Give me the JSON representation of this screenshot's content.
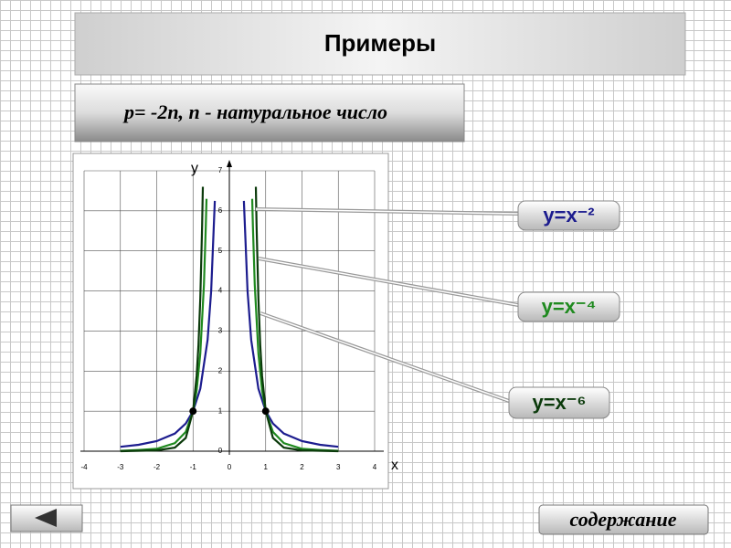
{
  "header": {
    "title": "Примеры"
  },
  "formula": "p= -2n, n - натуральное число",
  "chart_data": {
    "type": "line",
    "x_label": "x",
    "y_label": "y",
    "xlim": [
      -4,
      4
    ],
    "ylim": [
      0,
      7
    ],
    "xticks": [
      -4,
      -3,
      -2,
      -1,
      0,
      1,
      2,
      3,
      4
    ],
    "yticks": [
      0,
      1,
      2,
      3,
      4,
      5,
      6,
      7
    ],
    "grid": true,
    "series": [
      {
        "name": "y=x⁻²",
        "color": "#1c1c8e",
        "x": [
          -3,
          -2.5,
          -2,
          -1.5,
          -1.2,
          -1,
          -0.8,
          -0.6,
          -0.5,
          -0.4,
          0,
          0.4,
          0.5,
          0.6,
          0.8,
          1,
          1.2,
          1.5,
          2,
          2.5,
          3
        ],
        "values": [
          0.11,
          0.16,
          0.25,
          0.44,
          0.69,
          1,
          1.56,
          2.78,
          4,
          6.25,
          null,
          6.25,
          4,
          2.78,
          1.56,
          1,
          0.69,
          0.44,
          0.25,
          0.16,
          0.11
        ]
      },
      {
        "name": "y=x⁻⁴",
        "color": "#1f8a1f",
        "x": [
          -3,
          -2.5,
          -2,
          -1.5,
          -1.2,
          -1,
          -0.9,
          -0.8,
          -0.7,
          -0.65,
          -0.63,
          0,
          0.63,
          0.65,
          0.7,
          0.8,
          0.9,
          1,
          1.2,
          1.5,
          2,
          2.5,
          3
        ],
        "values": [
          0.01,
          0.03,
          0.06,
          0.2,
          0.48,
          1,
          1.52,
          2.44,
          4.16,
          5.6,
          6.3,
          null,
          6.3,
          5.6,
          4.16,
          2.44,
          1.52,
          1,
          0.48,
          0.2,
          0.06,
          0.03,
          0.01
        ]
      },
      {
        "name": "y=x⁻⁶",
        "color": "#0b3a0b",
        "x": [
          -3,
          -2,
          -1.5,
          -1.2,
          -1,
          -0.9,
          -0.85,
          -0.8,
          -0.75,
          -0.73,
          0,
          0.73,
          0.75,
          0.8,
          0.85,
          0.9,
          1,
          1.2,
          1.5,
          2,
          3
        ],
        "values": [
          0,
          0.02,
          0.09,
          0.33,
          1,
          1.88,
          2.65,
          3.81,
          5.62,
          6.6,
          null,
          6.6,
          5.62,
          3.81,
          2.65,
          1.88,
          1,
          0.33,
          0.09,
          0.02,
          0
        ]
      }
    ],
    "points": [
      {
        "x": -1,
        "y": 1
      },
      {
        "x": 1,
        "y": 1
      }
    ]
  },
  "navigation": {
    "contents": "содержание"
  }
}
